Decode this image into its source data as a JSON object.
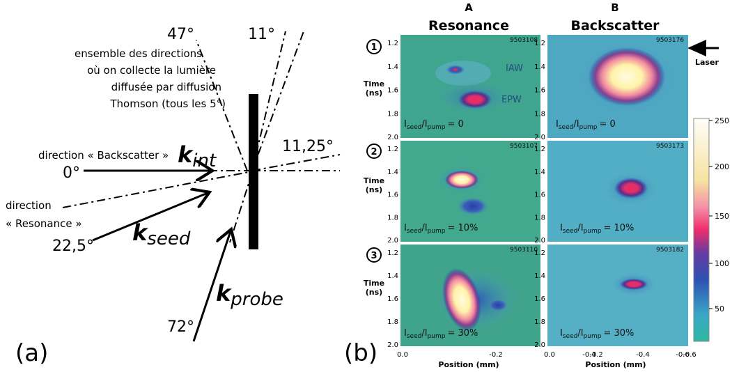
{
  "panel_a": {
    "label": "(a)",
    "angle_47": "47°",
    "angle_11": "11°",
    "angle_11_25": "11,25°",
    "angle_0": "0°",
    "angle_22_5": "22,5°",
    "angle_72": "72°",
    "note_line1": "ensemble des directions",
    "note_line2": "où on collecte la lumière",
    "note_line3": "diffusée par diffusion",
    "note_line4": "Thomson (tous les 5°)",
    "direction_backscatter": "direction « Backscatter »",
    "direction_resonance_1": "direction",
    "direction_resonance_2": "« Resonance »",
    "k_int": "int",
    "k_seed": "seed",
    "k_probe": "probe",
    "k_letter": "k"
  },
  "panel_b": {
    "label": "(b)",
    "col_a_letter": "A",
    "col_a_title": "Resonance",
    "col_b_letter": "B",
    "col_b_title": "Backscatter",
    "row_numbers": [
      "1",
      "2",
      "3"
    ],
    "time_label_1": "Time",
    "time_label_2": "(ns)",
    "y_ticks": [
      "1.2",
      "1.4",
      "1.6",
      "1.8",
      "2.0"
    ],
    "x_ticks": [
      "0.0",
      "-0.2",
      "-0.4",
      "-0.6"
    ],
    "x_label": "Position (mm)",
    "laser_label": "Laser",
    "iaw_label": "IAW",
    "epw_label": "EPW",
    "ratio_prefix": "I",
    "ratio_sub_seed": "seed",
    "ratio_slash": "/I",
    "ratio_sub_pump": "pump",
    "ratios": [
      "= 0",
      "= 10%",
      "= 30%"
    ],
    "shot_ids": [
      "9503108",
      "9503176",
      "9503107",
      "9503173",
      "9503110",
      "9503182"
    ],
    "colorbar_ticks": [
      "250",
      "200",
      "150",
      "100",
      "50"
    ]
  }
}
